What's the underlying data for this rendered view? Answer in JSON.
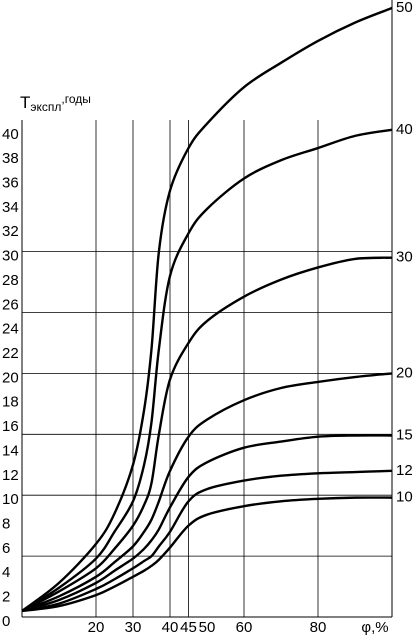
{
  "chart_data": {
    "type": "line",
    "ylabel": {
      "main": "Т",
      "sub": "экспл",
      "suffix": ",годы"
    },
    "xlabel": "φ,%",
    "x": [
      0,
      10,
      20,
      25,
      30,
      33,
      35,
      37,
      40,
      45,
      50,
      60,
      70,
      80,
      90,
      100
    ],
    "xlim": [
      0,
      100
    ],
    "ylim": [
      0,
      50
    ],
    "xticks": [
      20,
      30,
      40,
      45,
      50,
      60,
      80
    ],
    "yticks": [
      0,
      2,
      4,
      6,
      8,
      10,
      12,
      14,
      16,
      18,
      20,
      22,
      24,
      26,
      28,
      30,
      32,
      34,
      36,
      38,
      40
    ],
    "xgrid": [
      20,
      30,
      40,
      45,
      60,
      80
    ],
    "ygrid": [
      5,
      10,
      15,
      20,
      25,
      30
    ],
    "color": "#000000",
    "series": [
      {
        "name": "50",
        "values": [
          0.5,
          2.8,
          6,
          8.5,
          12.5,
          17,
          22,
          30,
          35,
          38.5,
          40.5,
          43.5,
          45.5,
          47.3,
          48.8,
          50
        ]
      },
      {
        "name": "40",
        "values": [
          0.5,
          2.4,
          4.8,
          7,
          9.5,
          12.5,
          16,
          22,
          28,
          31.5,
          33.5,
          36,
          37.5,
          38.5,
          39.5,
          40
        ]
      },
      {
        "name": "30",
        "values": [
          0.5,
          2.1,
          4,
          5.6,
          7.5,
          9.2,
          11,
          15,
          19.5,
          22.5,
          24.3,
          26.3,
          27.7,
          28.7,
          29.4,
          29.5
        ]
      },
      {
        "name": "20",
        "values": [
          0.5,
          1.7,
          3.3,
          4.5,
          5.8,
          7,
          8,
          9.5,
          12,
          14.8,
          16.2,
          17.8,
          18.8,
          19.3,
          19.7,
          20
        ]
      },
      {
        "name": "15",
        "values": [
          0.5,
          1.4,
          2.8,
          3.8,
          4.8,
          5.6,
          6.3,
          7.2,
          9,
          11.5,
          12.7,
          13.9,
          14.4,
          14.8,
          14.9,
          14.9
        ]
      },
      {
        "name": "12",
        "values": [
          0.5,
          1.1,
          2.3,
          3.1,
          4,
          4.6,
          5,
          5.8,
          7,
          9.5,
          10.5,
          11.2,
          11.6,
          11.8,
          11.9,
          12
        ]
      },
      {
        "name": "10",
        "values": [
          0.5,
          0.9,
          1.8,
          2.5,
          3.3,
          3.8,
          4.2,
          4.7,
          5.7,
          7.5,
          8.4,
          9.1,
          9.5,
          9.7,
          9.8,
          9.8
        ]
      }
    ]
  }
}
